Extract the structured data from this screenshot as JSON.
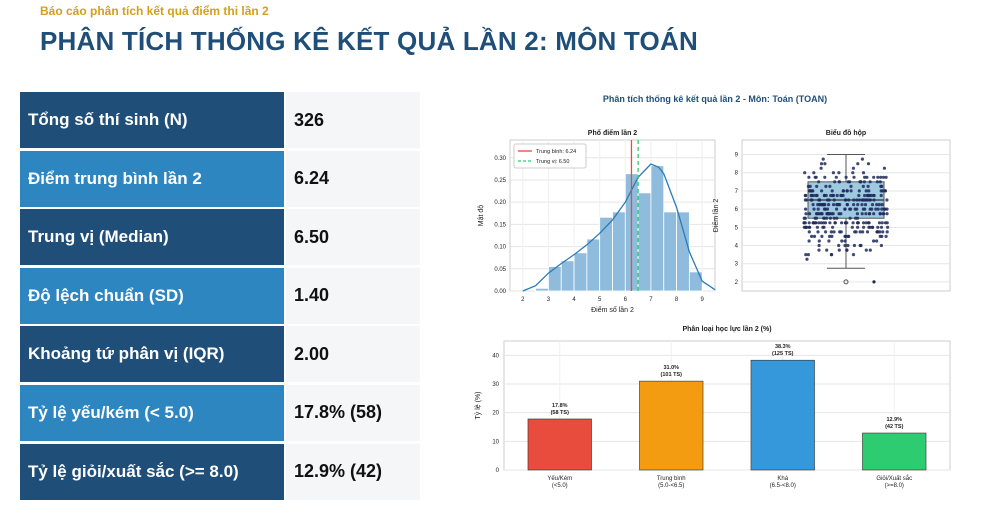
{
  "header": {
    "subtitle": "Báo cáo phân tích kết quả điểm thi lần 2",
    "title": "PHÂN TÍCH THỐNG KÊ KẾT QUẢ LẦN 2: MÔN TOÁN"
  },
  "stats": [
    {
      "label": "Tổng số thí sinh (N)",
      "value": "326"
    },
    {
      "label": "Điểm trung bình lần 2",
      "value": "6.24"
    },
    {
      "label": "Trung vị (Median)",
      "value": "6.50"
    },
    {
      "label": "Độ lệch chuẩn (SD)",
      "value": "1.40"
    },
    {
      "label": "Khoảng tứ phân vị (IQR)",
      "value": "2.00"
    },
    {
      "label": "Tỷ lệ yếu/kém (< 5.0)",
      "value": "17.8% (58)"
    },
    {
      "label": "Tỷ lệ giỏi/xuất sắc (>= 8.0)",
      "value": "12.9% (42)"
    }
  ],
  "colors": {
    "dark": "#1f4e79",
    "light": "#2e86c1",
    "accent": "#d4a017"
  },
  "figure_title": "Phân tích thống kê kết quả lần 2 - Môn: Toán (TOAN)",
  "chart_data": [
    {
      "type": "bar",
      "subtype": "histogram",
      "title": "Phổ điểm lần 2",
      "xlabel": "Điểm số lần 2",
      "ylabel": "Mật độ",
      "xlim": [
        1.5,
        9.5
      ],
      "ylim": [
        0,
        0.34
      ],
      "xticks": [
        2,
        3,
        4,
        5,
        6,
        7,
        8,
        9
      ],
      "yticks": [
        0.0,
        0.05,
        0.1,
        0.15,
        0.2,
        0.25,
        0.3
      ],
      "bins": [
        {
          "x0": 2.5,
          "x1": 3.0,
          "value": 0.006
        },
        {
          "x0": 3.0,
          "x1": 3.5,
          "value": 0.055
        },
        {
          "x0": 3.5,
          "x1": 4.0,
          "value": 0.068
        },
        {
          "x0": 4.0,
          "x1": 4.5,
          "value": 0.086
        },
        {
          "x0": 4.5,
          "x1": 5.0,
          "value": 0.117
        },
        {
          "x0": 5.0,
          "x1": 5.5,
          "value": 0.166
        },
        {
          "x0": 5.5,
          "x1": 6.0,
          "value": 0.178
        },
        {
          "x0": 6.0,
          "x1": 6.5,
          "value": 0.264
        },
        {
          "x0": 6.5,
          "x1": 7.0,
          "value": 0.221
        },
        {
          "x0": 7.0,
          "x1": 7.5,
          "value": 0.282
        },
        {
          "x0": 7.5,
          "x1": 8.0,
          "value": 0.178
        },
        {
          "x0": 8.0,
          "x1": 8.5,
          "value": 0.178
        },
        {
          "x0": 8.5,
          "x1": 9.0,
          "value": 0.043
        }
      ],
      "kde": {
        "x": [
          2.0,
          2.5,
          3.0,
          3.5,
          4.0,
          4.5,
          5.0,
          5.5,
          6.0,
          6.5,
          7.0,
          7.3,
          7.5,
          8.0,
          8.5,
          9.0,
          9.5
        ],
        "y": [
          0.0,
          0.012,
          0.04,
          0.062,
          0.082,
          0.104,
          0.13,
          0.16,
          0.2,
          0.256,
          0.286,
          0.279,
          0.264,
          0.188,
          0.088,
          0.022,
          0.003
        ]
      },
      "lines": [
        {
          "name": "Trung bình: 6.24",
          "x": 6.24,
          "color": "#e74c3c",
          "dash": "solid"
        },
        {
          "name": "Trung vị: 6.50",
          "x": 6.5,
          "color": "#2ecc71",
          "dash": "dashed"
        }
      ],
      "legend": "top-left",
      "grid": true
    },
    {
      "type": "box",
      "title": "Biểu đồ hộp",
      "ylabel": "Điểm lần 2",
      "ylim": [
        1.5,
        9.8
      ],
      "yticks": [
        2,
        3,
        4,
        5,
        6,
        7,
        8,
        9
      ],
      "q1": 5.5,
      "median": 6.5,
      "q3": 7.5,
      "whisker_low": 2.75,
      "whisker_high": 9.0,
      "outliers": [
        2.0
      ],
      "jitter_range": [
        2.75,
        9.5
      ],
      "n_points": 326,
      "grid": true
    },
    {
      "type": "bar",
      "title": "Phân loại học lực lần 2 (%)",
      "ylabel": "Tỷ lệ (%)",
      "ylim": [
        0,
        45
      ],
      "yticks": [
        0,
        10,
        20,
        30,
        40
      ],
      "categories": [
        {
          "name": "Yếu/Kém",
          "range": "(<5.0)",
          "pct_label": "17.8%",
          "count_label": "(58 TS)",
          "value": 17.8,
          "color": "#e74c3c"
        },
        {
          "name": "Trung bình",
          "range": "(5.0-<6.5)",
          "pct_label": "31.0%",
          "count_label": "(101 TS)",
          "value": 31.0,
          "color": "#f39c12"
        },
        {
          "name": "Khá",
          "range": "(6.5-<8.0)",
          "pct_label": "38.3%",
          "count_label": "(125 TS)",
          "value": 38.3,
          "color": "#3498db"
        },
        {
          "name": "Giỏi/Xuất sắc",
          "range": "(>=8.0)",
          "pct_label": "12.9%",
          "count_label": "(42 TS)",
          "value": 12.9,
          "color": "#2ecc71"
        }
      ],
      "grid": true
    }
  ]
}
